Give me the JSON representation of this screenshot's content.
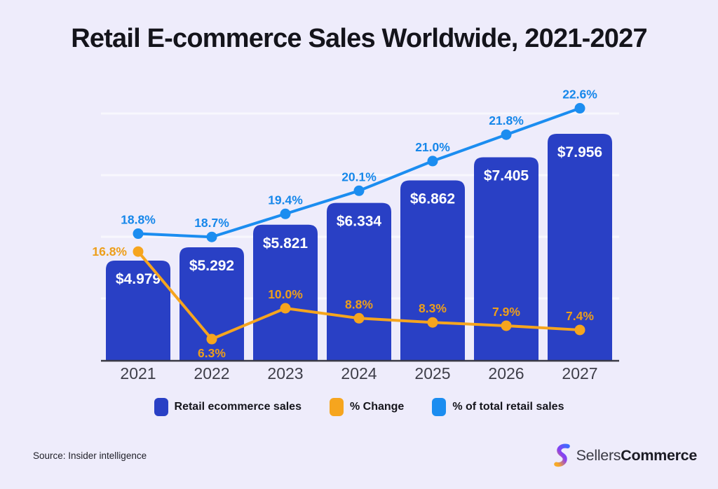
{
  "title": "Retail E-commerce Sales Worldwide, 2021-2027",
  "chart_data": {
    "type": "bar",
    "subtype": "bar-line-combo",
    "categories": [
      "2021",
      "2022",
      "2023",
      "2024",
      "2025",
      "2026",
      "2027"
    ],
    "series": [
      {
        "name": "Retail ecommerce sales",
        "type": "bar",
        "color": "#2940C5",
        "values": [
          4.979,
          5.292,
          5.821,
          6.334,
          6.862,
          7.405,
          7.956
        ],
        "labels": [
          "$4.979",
          "$5.292",
          "$5.821",
          "$6.334",
          "$6.862",
          "$7.405",
          "$7.956"
        ]
      },
      {
        "name": "% Change",
        "type": "line",
        "color": "#F6A51E",
        "label_color": "#ED9E1A",
        "values": [
          16.8,
          6.3,
          10.0,
          8.8,
          8.3,
          7.9,
          7.4
        ],
        "labels": [
          "16.8%",
          "6.3%",
          "10.0%",
          "8.8%",
          "8.3%",
          "7.9%",
          "7.4%"
        ]
      },
      {
        "name": "% of total retail sales",
        "type": "line",
        "color": "#1B8DF0",
        "label_color": "#1687EA",
        "values": [
          18.8,
          18.7,
          19.4,
          20.1,
          21.0,
          21.8,
          22.6
        ],
        "labels": [
          "18.8%",
          "18.7%",
          "19.4%",
          "20.1%",
          "21.0%",
          "21.8%",
          "22.6%"
        ]
      }
    ],
    "legend_position": "bottom",
    "grid": true
  },
  "footer": {
    "source": "Source: Insider intelligence",
    "brand": {
      "name_regular": "Sellers",
      "name_bold": "Commerce"
    }
  }
}
